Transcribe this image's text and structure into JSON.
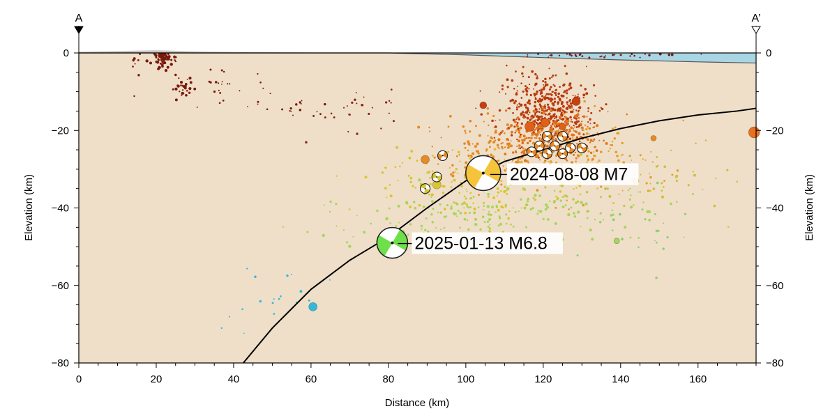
{
  "chart_data": {
    "type": "scatter",
    "title": "",
    "xlabel": "Distance (km)",
    "ylabel": "Elevation (km)",
    "xlim": [
      0,
      175
    ],
    "ylim": [
      -80,
      0
    ],
    "x_ticks": [
      0,
      20,
      40,
      60,
      80,
      100,
      120,
      140,
      160
    ],
    "y_ticks": [
      0,
      -20,
      -40,
      -60,
      -80
    ],
    "x_tick_labels": [
      "0",
      "20",
      "40",
      "60",
      "80",
      "100",
      "120",
      "140",
      "160"
    ],
    "y_tick_labels": [
      "0",
      "−20",
      "−40",
      "−60",
      "−80"
    ],
    "profile_start_label": "A",
    "profile_end_label": "A’",
    "colors": {
      "crust": "#efdfc9",
      "sea": "#a9d6e4",
      "slab": "#000000",
      "depth_shallow": "#7a1a0c",
      "depth_0_20": "#c8400f",
      "depth_20_30": "#e58a25",
      "depth_30_40": "#d9c530",
      "depth_40_60": "#a6d65a",
      "depth_60_80": "#34b8d9"
    },
    "topography": [
      {
        "x": 0,
        "y": 0.3
      },
      {
        "x": 10,
        "y": 0.5
      },
      {
        "x": 20,
        "y": 0.7
      },
      {
        "x": 30,
        "y": 0.4
      },
      {
        "x": 45,
        "y": 0.2
      },
      {
        "x": 60,
        "y": 0.1
      },
      {
        "x": 80,
        "y": 0.0
      },
      {
        "x": 100,
        "y": -0.5
      },
      {
        "x": 120,
        "y": -1.2
      },
      {
        "x": 140,
        "y": -1.8
      },
      {
        "x": 160,
        "y": -2.3
      },
      {
        "x": 175,
        "y": -2.6
      }
    ],
    "slab_interface": [
      {
        "x": 42.5,
        "y": -80
      },
      {
        "x": 50,
        "y": -71
      },
      {
        "x": 60,
        "y": -61
      },
      {
        "x": 70,
        "y": -53.5
      },
      {
        "x": 80,
        "y": -47.5
      },
      {
        "x": 90,
        "y": -40
      },
      {
        "x": 100,
        "y": -33
      },
      {
        "x": 110,
        "y": -28
      },
      {
        "x": 120,
        "y": -25
      },
      {
        "x": 130,
        "y": -22
      },
      {
        "x": 140,
        "y": -19.5
      },
      {
        "x": 150,
        "y": -17.5
      },
      {
        "x": 160,
        "y": -16
      },
      {
        "x": 170,
        "y": -15
      },
      {
        "x": 175,
        "y": -14.3
      }
    ],
    "annotations": [
      {
        "text": "2024-08-08 M7",
        "x": 104.5,
        "y": -31
      },
      {
        "text": "2025-01-13 M6.8",
        "x": 81,
        "y": -49
      }
    ],
    "mainshocks": [
      {
        "x": 104.5,
        "y": -31,
        "color": "#f5c43a",
        "label": "2024-08-08 M7"
      },
      {
        "x": 81,
        "y": -49,
        "color": "#6ee04a",
        "label": "2025-01-13 M6.8"
      }
    ],
    "focal_mechanisms": [
      {
        "x": 94,
        "y": -26.5,
        "color": "#e58a25"
      },
      {
        "x": 92.5,
        "y": -32,
        "color": "#d9c530"
      },
      {
        "x": 89.5,
        "y": -35,
        "color": "#d9c530"
      },
      {
        "x": 121,
        "y": -21.5,
        "color": "#e58a25"
      },
      {
        "x": 125,
        "y": -21.5,
        "color": "#e58a25"
      },
      {
        "x": 119,
        "y": -24,
        "color": "#e58a25"
      },
      {
        "x": 123,
        "y": -24,
        "color": "#e58a25"
      },
      {
        "x": 127,
        "y": -24.5,
        "color": "#e58a25"
      },
      {
        "x": 117,
        "y": -25.5,
        "color": "#e58a25"
      },
      {
        "x": 121,
        "y": -26,
        "color": "#e58a25"
      },
      {
        "x": 125,
        "y": -26,
        "color": "#e58a25"
      },
      {
        "x": 130,
        "y": -24.5,
        "color": "#e58a25"
      }
    ],
    "large_events": [
      {
        "x": 104.5,
        "y": -13.5,
        "color": "#c8400f",
        "size": 5
      },
      {
        "x": 128.5,
        "y": -12.5,
        "color": "#c8400f",
        "size": 6
      },
      {
        "x": 116.5,
        "y": -19,
        "color": "#e0601a",
        "size": 7
      },
      {
        "x": 120.5,
        "y": -18,
        "color": "#e0601a",
        "size": 6
      },
      {
        "x": 125,
        "y": -19,
        "color": "#e0601a",
        "size": 5
      },
      {
        "x": 89.5,
        "y": -27.5,
        "color": "#e58a25",
        "size": 6
      },
      {
        "x": 174.5,
        "y": -20.5,
        "color": "#e8701e",
        "size": 8
      },
      {
        "x": 148.5,
        "y": -22,
        "color": "#e58a25",
        "size": 4
      },
      {
        "x": 92.5,
        "y": -34,
        "color": "#d9c530",
        "size": 6
      },
      {
        "x": 144,
        "y": -33,
        "color": "#d9c530",
        "size": 4
      },
      {
        "x": 139,
        "y": -48.5,
        "color": "#a6d65a",
        "size": 4
      },
      {
        "x": 60.5,
        "y": -65.5,
        "color": "#34b8d9",
        "size": 6
      }
    ],
    "scatter_clusters": [
      {
        "cx": 22,
        "cy": -1.5,
        "sx": 1.3,
        "sy": 1.2,
        "n": 60,
        "color": "#7a1a0c",
        "r": 1.6
      },
      {
        "cx": 27,
        "cy": -8.5,
        "sx": 1.5,
        "sy": 1.3,
        "n": 25,
        "color": "#7a1a0c",
        "r": 1.5
      },
      {
        "cx": 14.5,
        "cy": -4.5,
        "sx": 1.0,
        "sy": 3.0,
        "n": 8,
        "color": "#7a1a0c",
        "r": 1.4
      },
      {
        "cx": 38,
        "cy": -9,
        "sx": 6.0,
        "sy": 2.5,
        "n": 22,
        "color": "#7a1a0c",
        "r": 1.2
      },
      {
        "cx": 55,
        "cy": -13,
        "sx": 6.0,
        "sy": 2.0,
        "n": 22,
        "color": "#7a1a0c",
        "r": 1.2
      },
      {
        "cx": 72,
        "cy": -14.5,
        "sx": 7.0,
        "sy": 3.0,
        "n": 25,
        "color": "#8a2510",
        "r": 1.2
      },
      {
        "cx": 136,
        "cy": -0.5,
        "sx": 12.0,
        "sy": 0.3,
        "n": 35,
        "color": "#7a1a0c",
        "r": 1.3
      },
      {
        "cx": 121,
        "cy": -15,
        "sx": 5.5,
        "sy": 4.5,
        "n": 480,
        "color": "#b8380e",
        "r": 1.3
      },
      {
        "cx": 122,
        "cy": -22,
        "sx": 6.0,
        "sy": 3.5,
        "n": 260,
        "color": "#e0751e",
        "r": 1.5
      },
      {
        "cx": 110,
        "cy": -25,
        "sx": 9.0,
        "sy": 4.5,
        "n": 160,
        "color": "#e58a25",
        "r": 1.4
      },
      {
        "cx": 132,
        "cy": -27,
        "sx": 10.0,
        "sy": 5.0,
        "n": 120,
        "color": "#e5a02a",
        "r": 1.3
      },
      {
        "cx": 100,
        "cy": -33,
        "sx": 12.0,
        "sy": 4.0,
        "n": 130,
        "color": "#d9c530",
        "r": 1.4
      },
      {
        "cx": 135,
        "cy": -33,
        "sx": 12.0,
        "sy": 3.5,
        "n": 80,
        "color": "#ccc23a",
        "r": 1.4
      },
      {
        "cx": 110,
        "cy": -41,
        "sx": 22.0,
        "sy": 4.0,
        "n": 150,
        "color": "#a6d65a",
        "r": 1.5
      },
      {
        "cx": 95,
        "cy": -46,
        "sx": 18.0,
        "sy": 3.5,
        "n": 60,
        "color": "#a6d65a",
        "r": 1.3
      },
      {
        "cx": 145,
        "cy": -45,
        "sx": 7.0,
        "sy": 5.0,
        "n": 25,
        "color": "#8fd070",
        "r": 1.3
      },
      {
        "cx": 52,
        "cy": -62,
        "sx": 5.0,
        "sy": 3.0,
        "n": 14,
        "color": "#34b8d9",
        "r": 1.3
      },
      {
        "cx": 40,
        "cy": -67,
        "sx": 3.0,
        "sy": 2.5,
        "n": 4,
        "color": "#34b8d9",
        "r": 1.2
      }
    ]
  }
}
